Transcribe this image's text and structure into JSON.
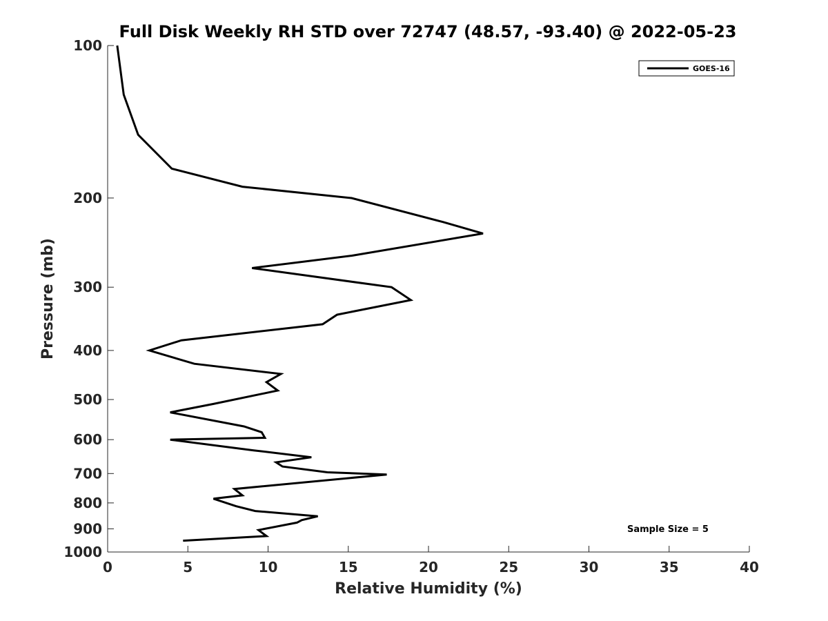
{
  "chart_data": {
    "type": "line",
    "title": "Full Disk Weekly RH STD over 72747 (48.57, -93.40) @ 2022-05-23",
    "xlabel": "Relative Humidity (%)",
    "ylabel": "Pressure (mb)",
    "xlim": [
      0,
      40
    ],
    "ylim": [
      100,
      1000
    ],
    "y_scale": "log",
    "y_reversed": true,
    "x_ticks": [
      0,
      5,
      10,
      15,
      20,
      25,
      30,
      35,
      40
    ],
    "y_ticks": [
      100,
      200,
      300,
      400,
      500,
      600,
      700,
      800,
      900,
      1000
    ],
    "grid": false,
    "legend_position": "top-right",
    "series": [
      {
        "name": "GOES-16",
        "color": "#000000",
        "points": [
          [
            0.6,
            100
          ],
          [
            1.0,
            125
          ],
          [
            1.9,
            150
          ],
          [
            4.0,
            175
          ],
          [
            8.4,
            190
          ],
          [
            15.2,
            200
          ],
          [
            20.9,
            223
          ],
          [
            23.4,
            235
          ],
          [
            15.2,
            260
          ],
          [
            9.0,
            275
          ],
          [
            17.7,
            300
          ],
          [
            18.9,
            318
          ],
          [
            14.3,
            340
          ],
          [
            13.4,
            355
          ],
          [
            4.6,
            382
          ],
          [
            2.6,
            400
          ],
          [
            5.4,
            425
          ],
          [
            10.8,
            445
          ],
          [
            9.9,
            462
          ],
          [
            10.6,
            480
          ],
          [
            6.6,
            510
          ],
          [
            3.9,
            530
          ],
          [
            8.5,
            565
          ],
          [
            9.6,
            580
          ],
          [
            9.8,
            595
          ],
          [
            3.9,
            600
          ],
          [
            9.1,
            630
          ],
          [
            12.7,
            650
          ],
          [
            10.5,
            665
          ],
          [
            10.9,
            678
          ],
          [
            13.7,
            696
          ],
          [
            17.4,
            703
          ],
          [
            7.9,
            751
          ],
          [
            8.4,
            773
          ],
          [
            6.6,
            785
          ],
          [
            8.0,
            812
          ],
          [
            9.2,
            830
          ],
          [
            13.1,
            850
          ],
          [
            12.1,
            865
          ],
          [
            11.8,
            875
          ],
          [
            9.4,
            905
          ],
          [
            9.9,
            930
          ],
          [
            4.7,
            950
          ]
        ]
      }
    ],
    "annotations": [
      {
        "text": "Sample Size = 5",
        "position": "bottom-right"
      }
    ]
  }
}
